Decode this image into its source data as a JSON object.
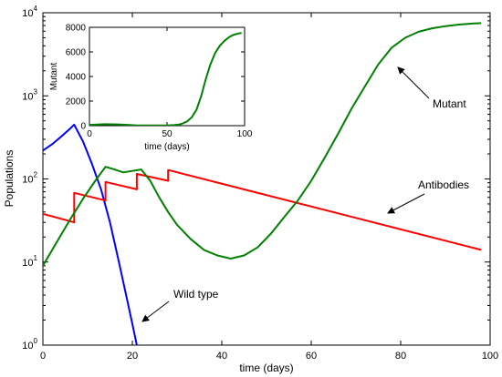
{
  "chart_data": [
    {
      "type": "line",
      "xlabel": "time (days)",
      "ylabel": "Populations",
      "xlim": [
        0,
        100
      ],
      "ylim": [
        1,
        10000
      ],
      "yscale": "log",
      "x_ticks": [
        "0",
        "20",
        "40",
        "60",
        "80",
        "100"
      ],
      "y_ticks": [
        {
          "base": "10",
          "exp": "0"
        },
        {
          "base": "10",
          "exp": "1"
        },
        {
          "base": "10",
          "exp": "2"
        },
        {
          "base": "10",
          "exp": "3"
        },
        {
          "base": "10",
          "exp": "4"
        }
      ],
      "series": [
        {
          "name": "Wild type",
          "color": "#0000ff",
          "x": [
            0,
            2,
            4,
            6,
            7,
            9,
            11,
            13,
            15,
            17,
            19,
            20,
            21
          ],
          "y": [
            220,
            260,
            320,
            400,
            450,
            280,
            150,
            75,
            30,
            10,
            3.2,
            1.8,
            1.0
          ]
        },
        {
          "name": "Antibodies",
          "color": "#ff0000",
          "x": [
            0,
            7,
            7,
            14,
            14,
            21,
            21,
            28,
            28,
            98
          ],
          "y": [
            38,
            30,
            68,
            55,
            92,
            75,
            115,
            95,
            128,
            14
          ]
        },
        {
          "name": "Mutant",
          "color": "#008000",
          "x": [
            0,
            3,
            6,
            9,
            12,
            14,
            16,
            18,
            20,
            22,
            24,
            26,
            28,
            30,
            33,
            36,
            39,
            42,
            45,
            48,
            51,
            54,
            57,
            60,
            63,
            66,
            69,
            72,
            75,
            78,
            81,
            84,
            87,
            90,
            93,
            96,
            98
          ],
          "y": [
            9,
            17,
            32,
            58,
            100,
            140,
            130,
            120,
            125,
            130,
            95,
            60,
            40,
            28,
            19,
            14,
            12,
            11,
            12,
            15,
            22,
            35,
            55,
            95,
            180,
            350,
            700,
            1300,
            2400,
            3800,
            5000,
            5900,
            6500,
            6900,
            7200,
            7400,
            7500
          ]
        }
      ],
      "annotations": [
        {
          "text": "Mutant",
          "target_series": "Mutant"
        },
        {
          "text": "Antibodies",
          "target_series": "Antibodies"
        },
        {
          "text": "Wild type",
          "target_series": "Wild type"
        }
      ],
      "grid": false
    },
    {
      "type": "line",
      "xlabel": "time (days)",
      "ylabel": "Mutant",
      "xlim": [
        0,
        100
      ],
      "ylim": [
        0,
        8000
      ],
      "x_ticks": [
        "0",
        "50",
        "100"
      ],
      "y_ticks": [
        "0",
        "2000",
        "4000",
        "6000",
        "8000"
      ],
      "series": [
        {
          "color": "#008000",
          "x": [
            0,
            10,
            20,
            30,
            40,
            50,
            55,
            58,
            60,
            63,
            66,
            69,
            72,
            75,
            78,
            81,
            84,
            87,
            90,
            93,
            96,
            98
          ],
          "y": [
            70,
            120,
            100,
            30,
            15,
            20,
            50,
            100,
            180,
            350,
            700,
            1300,
            2400,
            3800,
            5000,
            5900,
            6500,
            6900,
            7200,
            7400,
            7500,
            7550
          ]
        }
      ]
    }
  ]
}
